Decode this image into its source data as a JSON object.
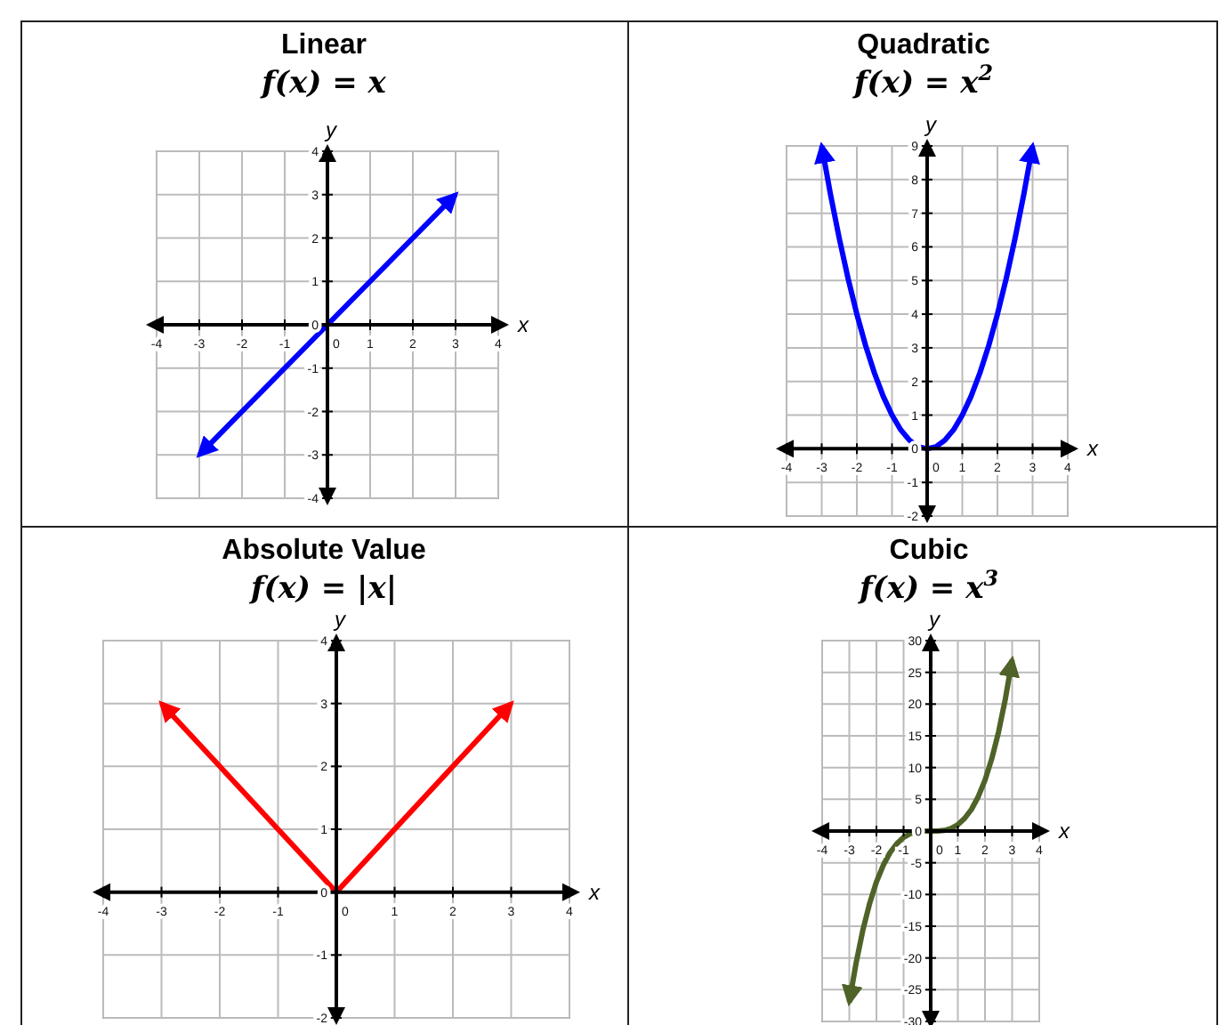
{
  "chart_data": [
    {
      "type": "line",
      "title": "Linear",
      "subtitle": "f(x) = x",
      "xlabel": "x",
      "ylabel": "y",
      "x": [
        -3,
        -2,
        -1,
        0,
        1,
        2,
        3
      ],
      "series": [
        {
          "color": "#0000ff",
          "values": [
            -3,
            -2,
            -1,
            0,
            1,
            2,
            3
          ]
        }
      ],
      "xlim": [
        -4,
        4
      ],
      "ylim": [
        -4,
        4
      ],
      "xticks": [
        -4,
        -3,
        -2,
        -1,
        0,
        1,
        2,
        3,
        4
      ],
      "yticks": [
        -4,
        -3,
        -2,
        -1,
        0,
        1,
        2,
        3,
        4
      ],
      "grid": true,
      "marker": "none",
      "line_style": "solid"
    },
    {
      "type": "line",
      "title": "Quadratic",
      "subtitle": "f(x) = x$^{2}$",
      "xlabel": "x",
      "ylabel": "y",
      "x": [
        -3,
        -2.75,
        -2.5,
        -2.25,
        -2,
        -1.75,
        -1.5,
        -1.25,
        -1,
        -0.75,
        -0.5,
        -0.25,
        0,
        0.25,
        0.5,
        0.75,
        1,
        1.25,
        1.5,
        1.75,
        2,
        2.25,
        2.5,
        2.75,
        3
      ],
      "series": [
        {
          "color": "#0000ff",
          "values": [
            9,
            7.56,
            6.25,
            5.06,
            4,
            3.06,
            2.25,
            1.56,
            1,
            0.56,
            0.25,
            0.06,
            0,
            0.06,
            0.25,
            0.56,
            1,
            1.56,
            2.25,
            3.06,
            4,
            5.06,
            6.25,
            7.56,
            9
          ]
        }
      ],
      "xlim": [
        -4,
        4
      ],
      "ylim": [
        -2,
        9
      ],
      "xticks": [
        -4,
        -3,
        -2,
        -1,
        0,
        1,
        2,
        3,
        4
      ],
      "yticks": [
        -2,
        -1,
        0,
        1,
        2,
        3,
        4,
        5,
        6,
        7,
        8,
        9
      ],
      "grid": true,
      "marker": "none",
      "line_style": "solid"
    },
    {
      "type": "line",
      "title": "Absolute Value",
      "subtitle": "f(x) = |x|",
      "xlabel": "x",
      "ylabel": "y",
      "x": [
        -3,
        -2,
        -1,
        0,
        1,
        2,
        3
      ],
      "series": [
        {
          "color": "#ff0000",
          "values": [
            3,
            2,
            1,
            0,
            1,
            2,
            3
          ]
        }
      ],
      "xlim": [
        -4,
        4
      ],
      "ylim": [
        -2,
        4
      ],
      "xticks": [
        -4,
        -3,
        -2,
        -1,
        0,
        1,
        2,
        3,
        4
      ],
      "yticks": [
        -2,
        -1,
        0,
        1,
        2,
        3,
        4
      ],
      "grid": true,
      "marker": "none",
      "line_style": "solid"
    },
    {
      "type": "line",
      "title": "Cubic",
      "subtitle": "f(x) = x$^{3}$",
      "xlabel": "x",
      "ylabel": "y",
      "x": [
        -3,
        -2.75,
        -2.5,
        -2.25,
        -2,
        -1.75,
        -1.5,
        -1.25,
        -1,
        -0.75,
        -0.5,
        -0.25,
        0,
        0.25,
        0.5,
        0.75,
        1,
        1.25,
        1.5,
        1.75,
        2,
        2.25,
        2.5,
        2.75,
        3
      ],
      "series": [
        {
          "color": "#4f6228",
          "values": [
            -27,
            -20.8,
            -15.6,
            -11.4,
            -8,
            -5.4,
            -3.4,
            -2,
            -1,
            -0.4,
            -0.1,
            0,
            0,
            0,
            0.1,
            0.4,
            1,
            2,
            3.4,
            5.4,
            8,
            11.4,
            15.6,
            20.8,
            27
          ]
        }
      ],
      "xlim": [
        -4,
        4
      ],
      "ylim": [
        -30,
        30
      ],
      "xticks": [
        -4,
        -3,
        -2,
        -1,
        0,
        1,
        2,
        3,
        4
      ],
      "yticks": [
        -30,
        -25,
        -20,
        -15,
        -10,
        -5,
        0,
        5,
        10,
        15,
        20,
        25,
        30
      ],
      "grid": true,
      "marker": "none",
      "line_style": "solid"
    }
  ]
}
